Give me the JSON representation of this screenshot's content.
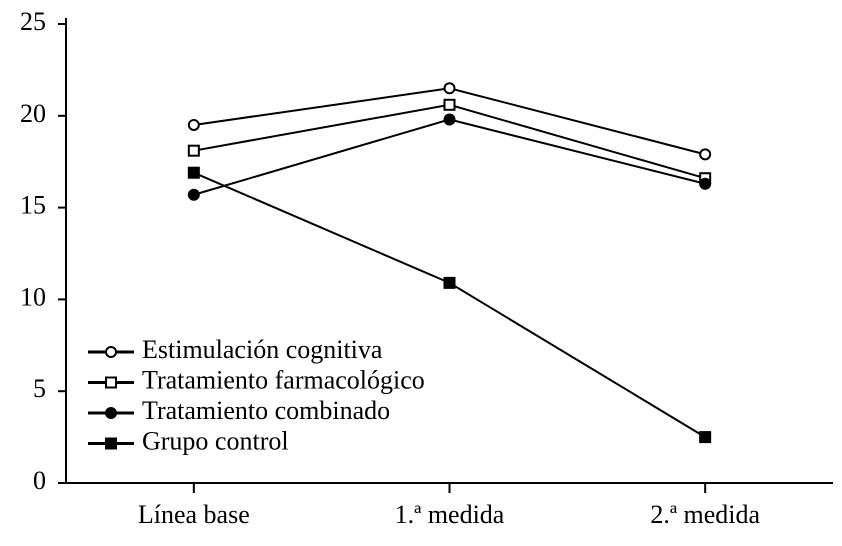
{
  "chart_data": {
    "type": "line",
    "categories": [
      "Línea base",
      "1.ª medida",
      "2.ª medida"
    ],
    "series": [
      {
        "name": "Estimulación cognitiva",
        "color": "#000000",
        "marker": "open-circle",
        "values": [
          19.5,
          21.5,
          17.9
        ]
      },
      {
        "name": "Tratamiento farmacológico",
        "color": "#000000",
        "marker": "open-square",
        "values": [
          18.1,
          20.6,
          16.6
        ]
      },
      {
        "name": "Tratamiento combinado",
        "color": "#000000",
        "marker": "filled-circle",
        "values": [
          15.7,
          19.8,
          16.3
        ]
      },
      {
        "name": "Grupo control",
        "color": "#000000",
        "marker": "filled-square",
        "values": [
          16.9,
          10.9,
          2.5
        ]
      }
    ],
    "ylim": [
      0,
      25
    ],
    "yticks": [
      0,
      5,
      10,
      15,
      20,
      25
    ],
    "grid": false,
    "legend": "lower left"
  }
}
